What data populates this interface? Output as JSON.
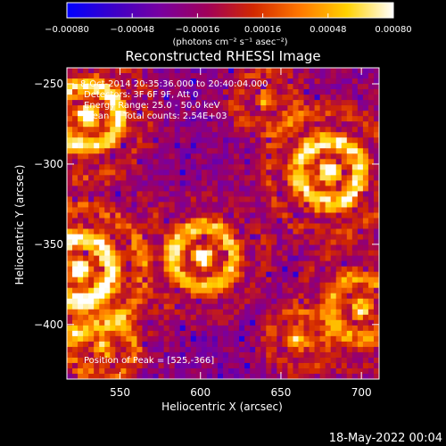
{
  "chart_data": {
    "type": "heatmap",
    "title": "Reconstructed RHESSI Image",
    "xlabel": "Heliocentric X (arcsec)",
    "ylabel": "Heliocentric Y (arcsec)",
    "xlim": [
      517,
      711
    ],
    "ylim": [
      -434,
      -240
    ],
    "x_ticks": [
      550,
      600,
      650,
      700
    ],
    "x_tick_labels": [
      "550",
      "600",
      "650",
      "700"
    ],
    "y_ticks": [
      -250,
      -300,
      -350,
      -400
    ],
    "y_tick_labels": [
      "−250",
      "−300",
      "−350",
      "−400"
    ],
    "colorbar": {
      "range": [
        -0.0008,
        0.0008
      ],
      "ticks": [
        -0.0008,
        -0.00048,
        -0.00016,
        0.00016,
        0.00048,
        0.0008
      ],
      "tick_labels": [
        "−0.00080",
        "−0.00048",
        "−0.00016",
        "0.00016",
        "0.00048",
        "0.00080"
      ],
      "unit_label": "(photons cm⁻² s⁻¹ asec⁻²)",
      "colors": [
        "#0000ff",
        "#3c00c8",
        "#7800a0",
        "#a0005a",
        "#d22800",
        "#ff7800",
        "#ffd200",
        "#ffffff"
      ]
    },
    "annotations": [
      "8-Oct-2014 20:35:36.000 to 20:40:04.000",
      "Detectors: 3F 6F 9F, Att 0",
      "Energy Range: 25.0 - 50.0 keV",
      "Clean     Total counts: 2.54E+03"
    ],
    "peak_label": "Position of Peak = [525,-366]",
    "peak": [
      525,
      -366
    ],
    "grid": false
  },
  "footer": {
    "date": "18-May-2022 00:04"
  }
}
